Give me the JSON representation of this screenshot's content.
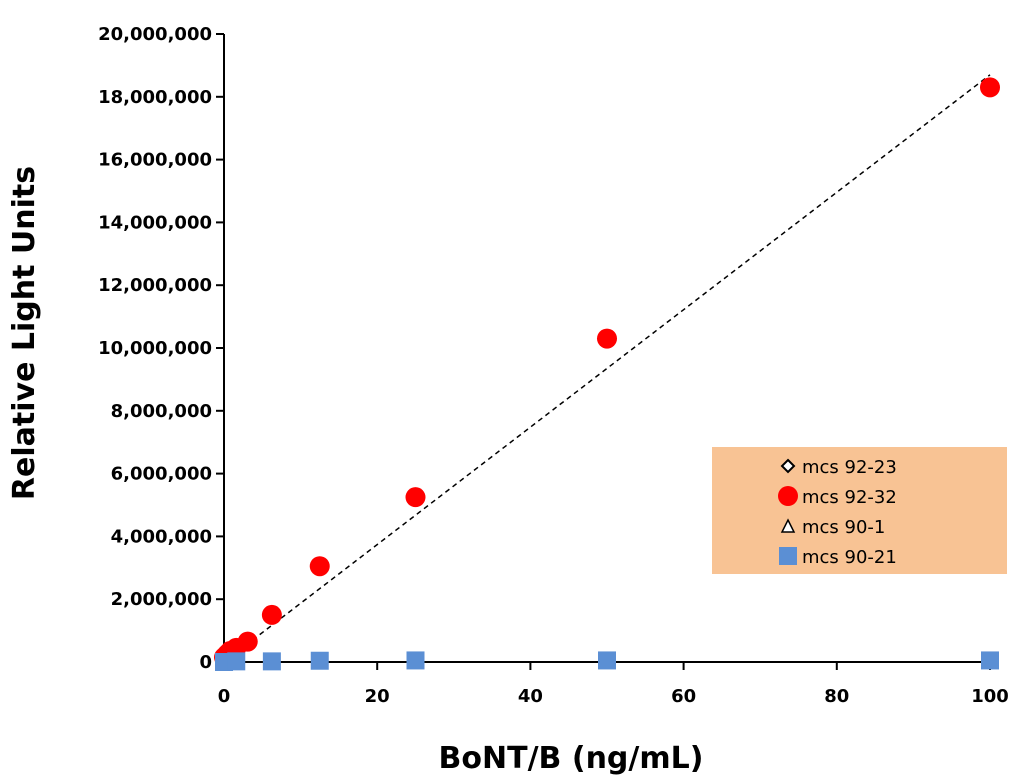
{
  "chart_data": {
    "type": "scatter",
    "title": "",
    "xlabel": "BoNT/B (ng/mL)",
    "ylabel": "Relative Light Units",
    "xlim": [
      0,
      100
    ],
    "ylim": [
      0,
      20000000
    ],
    "x_ticks": [
      0,
      20,
      40,
      60,
      80,
      100
    ],
    "x_tick_labels": [
      "0",
      "20",
      "40",
      "60",
      "80",
      "100"
    ],
    "y_ticks": [
      0,
      2000000,
      4000000,
      6000000,
      8000000,
      10000000,
      12000000,
      14000000,
      16000000,
      18000000,
      20000000
    ],
    "y_tick_labels": [
      "0",
      "2,000,000",
      "4,000,000",
      "6,000,000",
      "8,000,000",
      "10,000,000",
      "12,000,000",
      "14,000,000",
      "16,000,000",
      "18,000,000",
      "20,000,000"
    ],
    "grid": false,
    "legend_position": "right",
    "legend_background": "#f8c394",
    "series": [
      {
        "name": "mcs 92-23",
        "marker": "diamond-open",
        "color": "#000000",
        "x": [
          0
        ],
        "y": [
          0
        ]
      },
      {
        "name": "mcs 92-32",
        "marker": "circle",
        "color": "#ff0000",
        "x": [
          0,
          0.4,
          0.8,
          1.6,
          3.1,
          6.25,
          12.5,
          25,
          50,
          100
        ],
        "y": [
          150000,
          250000,
          350000,
          450000,
          650000,
          1500000,
          3050000,
          5250000,
          10300000,
          18300000
        ]
      },
      {
        "name": "mcs 90-1",
        "marker": "triangle-open",
        "color": "#000000",
        "x": [],
        "y": []
      },
      {
        "name": "mcs 90-21",
        "marker": "square",
        "color": "#5b8fd4",
        "x": [
          0,
          1.6,
          6.25,
          12.5,
          25,
          50,
          100
        ],
        "y": [
          0,
          20000,
          20000,
          40000,
          50000,
          50000,
          50000
        ]
      }
    ],
    "trendline": {
      "series": "mcs 92-32",
      "style": "dashed",
      "color": "#000000",
      "x": [
        0,
        100
      ],
      "y": [
        0,
        18700000
      ]
    }
  }
}
